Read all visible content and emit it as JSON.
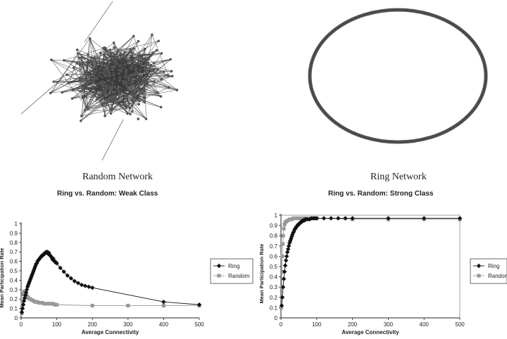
{
  "panels": {
    "random_network_caption": "Random Network",
    "ring_network_caption": "Ring Network"
  },
  "colors": {
    "ring_series": "#111111",
    "random_series": "#999999",
    "network_edge": "#3a3a3a",
    "network_node": "#555555"
  },
  "chart_data": [
    {
      "type": "line",
      "title": "Ring vs. Random: Weak Class",
      "xlabel": "Average Connectivity",
      "ylabel": "Mean Participation Rate",
      "xlim": [
        0,
        500
      ],
      "ylim": [
        0,
        1
      ],
      "xticks": [
        "0",
        "100",
        "200",
        "300",
        "400",
        "500"
      ],
      "yticks": [
        "0",
        "0.1",
        "0.2",
        "0.3",
        "0.4",
        "0.5",
        "0.6",
        "0.7",
        "0.8",
        "0.9",
        "1"
      ],
      "grid": false,
      "legend_position": "right",
      "series": [
        {
          "name": "Ring",
          "marker": "diamond",
          "x": [
            2,
            4,
            6,
            8,
            10,
            12,
            14,
            16,
            18,
            20,
            22,
            24,
            26,
            28,
            30,
            32,
            34,
            36,
            38,
            40,
            42,
            44,
            46,
            48,
            50,
            52,
            54,
            56,
            58,
            60,
            62,
            64,
            66,
            68,
            70,
            72,
            74,
            76,
            78,
            80,
            82,
            84,
            86,
            88,
            90,
            92,
            94,
            96,
            98,
            100,
            110,
            120,
            130,
            140,
            150,
            160,
            170,
            180,
            190,
            200,
            400,
            500
          ],
          "y": [
            0.06,
            0.1,
            0.14,
            0.18,
            0.21,
            0.24,
            0.27,
            0.3,
            0.33,
            0.35,
            0.37,
            0.39,
            0.41,
            0.43,
            0.45,
            0.47,
            0.49,
            0.51,
            0.53,
            0.55,
            0.57,
            0.58,
            0.6,
            0.61,
            0.62,
            0.63,
            0.64,
            0.65,
            0.66,
            0.66,
            0.67,
            0.68,
            0.68,
            0.69,
            0.7,
            0.69,
            0.7,
            0.68,
            0.69,
            0.67,
            0.66,
            0.65,
            0.64,
            0.62,
            0.63,
            0.61,
            0.6,
            0.59,
            0.59,
            0.58,
            0.53,
            0.49,
            0.45,
            0.42,
            0.39,
            0.37,
            0.35,
            0.34,
            0.33,
            0.32,
            0.17,
            0.14
          ]
        },
        {
          "name": "Random",
          "marker": "square",
          "x": [
            2,
            4,
            6,
            8,
            10,
            12,
            14,
            16,
            18,
            20,
            25,
            30,
            35,
            40,
            45,
            50,
            55,
            60,
            65,
            70,
            75,
            80,
            85,
            90,
            95,
            100,
            200,
            300,
            400,
            500
          ],
          "y": [
            0.05,
            0.15,
            0.25,
            0.28,
            0.27,
            0.26,
            0.25,
            0.23,
            0.22,
            0.21,
            0.2,
            0.19,
            0.18,
            0.17,
            0.17,
            0.16,
            0.16,
            0.16,
            0.15,
            0.15,
            0.15,
            0.15,
            0.15,
            0.15,
            0.14,
            0.14,
            0.13,
            0.13,
            0.13,
            0.13
          ]
        }
      ]
    },
    {
      "type": "line",
      "title": "Ring vs. Random: Strong Class",
      "xlabel": "Average Connectivity",
      "ylabel": "Mean Participation Rate",
      "xlim": [
        0,
        500
      ],
      "ylim": [
        0,
        1
      ],
      "xticks": [
        "0",
        "100",
        "200",
        "300",
        "400",
        "500"
      ],
      "yticks": [
        "0",
        "0.1",
        "0.2",
        "0.3",
        "0.4",
        "0.5",
        "0.6",
        "0.7",
        "0.8",
        "0.9",
        "1"
      ],
      "grid": false,
      "legend_position": "right",
      "series": [
        {
          "name": "Ring",
          "marker": "diamond",
          "x": [
            2,
            4,
            6,
            8,
            10,
            12,
            14,
            16,
            18,
            20,
            22,
            24,
            26,
            28,
            30,
            32,
            34,
            36,
            38,
            40,
            42,
            44,
            46,
            48,
            50,
            52,
            54,
            56,
            58,
            60,
            62,
            64,
            66,
            68,
            70,
            75,
            80,
            85,
            90,
            95,
            100,
            120,
            140,
            160,
            180,
            200,
            300,
            400,
            500
          ],
          "y": [
            0.12,
            0.2,
            0.3,
            0.38,
            0.45,
            0.51,
            0.56,
            0.6,
            0.64,
            0.67,
            0.7,
            0.73,
            0.75,
            0.77,
            0.79,
            0.81,
            0.83,
            0.84,
            0.86,
            0.87,
            0.88,
            0.89,
            0.9,
            0.91,
            0.91,
            0.92,
            0.93,
            0.93,
            0.94,
            0.94,
            0.95,
            0.95,
            0.95,
            0.96,
            0.96,
            0.96,
            0.96,
            0.97,
            0.97,
            0.97,
            0.97,
            0.97,
            0.97,
            0.97,
            0.97,
            0.97,
            0.97,
            0.97,
            0.97
          ]
        },
        {
          "name": "Random",
          "marker": "square",
          "x": [
            1,
            2,
            3,
            4,
            5,
            6,
            8,
            10,
            12,
            15,
            20,
            25,
            30,
            35,
            40,
            45,
            50,
            55,
            60,
            65,
            70,
            80,
            90,
            100,
            200,
            300,
            400,
            500
          ],
          "y": [
            0.1,
            0.3,
            0.45,
            0.6,
            0.72,
            0.8,
            0.87,
            0.91,
            0.93,
            0.94,
            0.95,
            0.96,
            0.96,
            0.97,
            0.97,
            0.97,
            0.97,
            0.97,
            0.97,
            0.97,
            0.97,
            0.97,
            0.97,
            0.97,
            0.96,
            0.96,
            0.96,
            0.96
          ]
        }
      ]
    }
  ]
}
